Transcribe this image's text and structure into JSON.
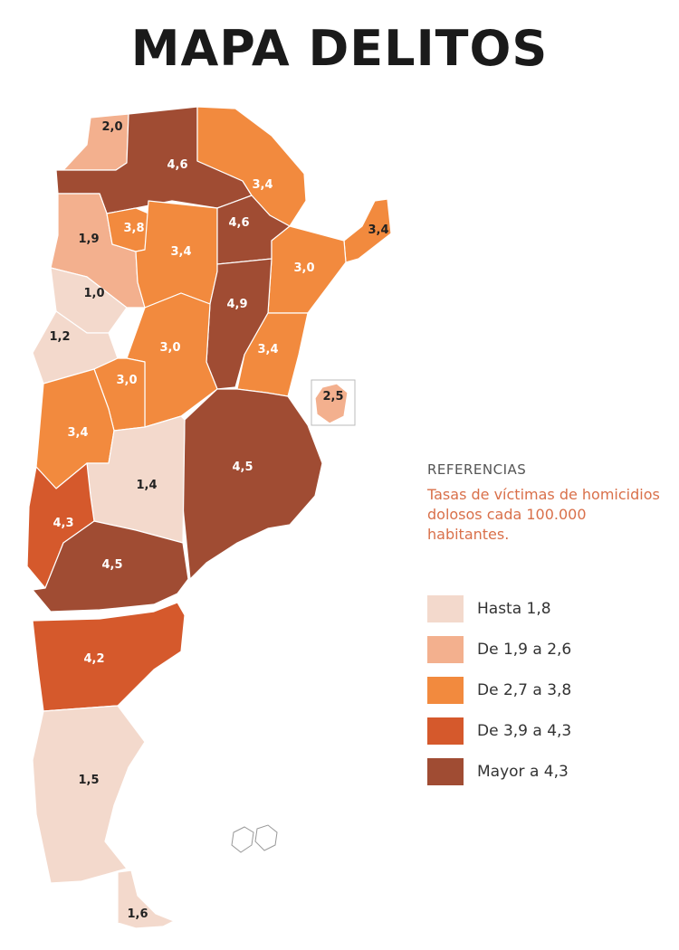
{
  "title": "MAPA DELITOS",
  "legend": {
    "heading": "REFERENCIAS",
    "description": "Tasas de víctimas de homicidios dolosos cada 100.000 habitantes.",
    "items": [
      {
        "label": "Hasta 1,8",
        "color": "#f3d9cc"
      },
      {
        "label": "De 1,9 a 2,6",
        "color": "#f3b08e"
      },
      {
        "label": "De 2,7 a 3,8",
        "color": "#f28a3e"
      },
      {
        "label": "De 3,9 a 4,3",
        "color": "#d5592c"
      },
      {
        "label": "Mayor a 4,3",
        "color": "#a04c33"
      }
    ]
  },
  "regions": [
    {
      "rate": "2,0",
      "class": 1
    },
    {
      "rate": "4,6",
      "class": 4
    },
    {
      "rate": "3,4",
      "class": 2
    },
    {
      "rate": "1,9",
      "class": 1
    },
    {
      "rate": "3,8",
      "class": 2
    },
    {
      "rate": "3,4",
      "class": 2
    },
    {
      "rate": "4,6",
      "class": 4
    },
    {
      "rate": "3,4",
      "class": 2
    },
    {
      "rate": "3,0",
      "class": 2
    },
    {
      "rate": "1,0",
      "class": 0
    },
    {
      "rate": "4,9",
      "class": 4
    },
    {
      "rate": "1,2",
      "class": 0
    },
    {
      "rate": "3,0",
      "class": 2
    },
    {
      "rate": "3,4",
      "class": 2
    },
    {
      "rate": "3,0",
      "class": 2
    },
    {
      "rate": "2,5",
      "class": 1
    },
    {
      "rate": "3,4",
      "class": 2
    },
    {
      "rate": "4,5",
      "class": 4
    },
    {
      "rate": "1,4",
      "class": 0
    },
    {
      "rate": "4,3",
      "class": 3
    },
    {
      "rate": "4,5",
      "class": 4
    },
    {
      "rate": "4,2",
      "class": 3
    },
    {
      "rate": "1,5",
      "class": 0
    },
    {
      "rate": "1,6",
      "class": 0
    }
  ]
}
